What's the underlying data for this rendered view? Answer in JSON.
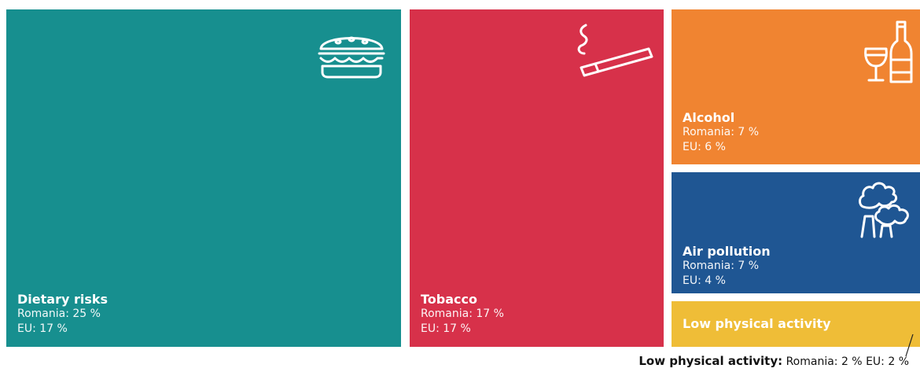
{
  "chart_data": {
    "type": "treemap",
    "items": [
      {
        "name": "Dietary risks",
        "romania": "Romania: 25 %",
        "eu": "EU: 17 %",
        "value": 25,
        "color": "#178f8f"
      },
      {
        "name": "Tobacco",
        "romania": "Romania: 17 %",
        "eu": "EU: 17 %",
        "value": 17,
        "color": "#d7314a"
      },
      {
        "name": "Alcohol",
        "romania": "Romania: 7 %",
        "eu": "EU: 6 %",
        "value": 7,
        "color": "#f08431"
      },
      {
        "name": "Air pollution",
        "romania": "Romania: 7 %",
        "eu": "EU: 4 %",
        "value": 7,
        "color": "#1f5693"
      },
      {
        "name": "Low physical activity",
        "value": 2,
        "color": "#efbd37"
      }
    ],
    "footnote": {
      "name": "Low physical activity:",
      "romania": "Romania: 2 %",
      "eu": "EU: 2 %"
    }
  },
  "icons": {
    "dietary": "burger-icon",
    "tobacco": "cigarette-icon",
    "alcohol": "wine-bottle-icon",
    "air": "factory-smoke-icon"
  }
}
